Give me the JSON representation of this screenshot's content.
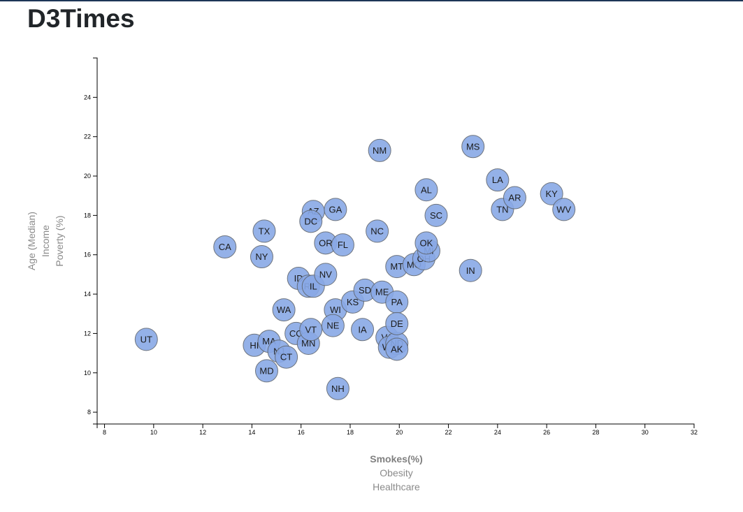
{
  "page": {
    "title": "D3Times",
    "accent": "#1d3557"
  },
  "chart_data": {
    "type": "scatter",
    "title": "",
    "x_labels": [
      {
        "text": "Smokes(%)",
        "active": true
      },
      {
        "text": "Obesity",
        "active": false
      },
      {
        "text": "Healthcare",
        "active": false
      }
    ],
    "y_labels": [
      {
        "text": "Poverty (%)",
        "active": false
      },
      {
        "text": "Income",
        "active": false
      },
      {
        "text": "Age (Median)",
        "active": false
      }
    ],
    "xlim": [
      7.7,
      32
    ],
    "ylim": [
      7.4,
      26
    ],
    "x_ticks": [
      8,
      10,
      12,
      14,
      16,
      18,
      20,
      22,
      24,
      26,
      28,
      30,
      32
    ],
    "y_ticks": [
      8,
      10,
      12,
      14,
      16,
      18,
      20,
      22,
      24
    ],
    "grid": false,
    "marker_color": "#89a9e6",
    "points": [
      {
        "abbr": "UT",
        "x": 9.7,
        "y": 11.7
      },
      {
        "abbr": "CA",
        "x": 12.9,
        "y": 16.4
      },
      {
        "abbr": "HI",
        "x": 14.1,
        "y": 11.4
      },
      {
        "abbr": "MA",
        "x": 14.7,
        "y": 11.6
      },
      {
        "abbr": "MD",
        "x": 14.6,
        "y": 10.1
      },
      {
        "abbr": "TX",
        "x": 14.5,
        "y": 17.2
      },
      {
        "abbr": "NY",
        "x": 14.4,
        "y": 15.9
      },
      {
        "abbr": "NJ",
        "x": 15.1,
        "y": 11.1
      },
      {
        "abbr": "CT",
        "x": 15.4,
        "y": 10.8
      },
      {
        "abbr": "WA",
        "x": 15.3,
        "y": 13.2
      },
      {
        "abbr": "CO",
        "x": 15.8,
        "y": 12.0
      },
      {
        "abbr": "ID",
        "x": 15.9,
        "y": 14.8
      },
      {
        "abbr": "RI",
        "x": 16.3,
        "y": 14.4
      },
      {
        "abbr": "IL",
        "x": 16.5,
        "y": 14.4
      },
      {
        "abbr": "MN",
        "x": 16.3,
        "y": 11.5
      },
      {
        "abbr": "VT",
        "x": 16.4,
        "y": 12.2
      },
      {
        "abbr": "AZ",
        "x": 16.5,
        "y": 18.2
      },
      {
        "abbr": "DC",
        "x": 16.4,
        "y": 17.7
      },
      {
        "abbr": "NV",
        "x": 17.0,
        "y": 15.0
      },
      {
        "abbr": "OR",
        "x": 17.0,
        "y": 16.6
      },
      {
        "abbr": "GA",
        "x": 17.4,
        "y": 18.3
      },
      {
        "abbr": "WI",
        "x": 17.4,
        "y": 13.2
      },
      {
        "abbr": "NE",
        "x": 17.3,
        "y": 12.4
      },
      {
        "abbr": "FL",
        "x": 17.7,
        "y": 16.5
      },
      {
        "abbr": "NH",
        "x": 17.5,
        "y": 9.2
      },
      {
        "abbr": "KS",
        "x": 18.1,
        "y": 13.6
      },
      {
        "abbr": "SD",
        "x": 18.6,
        "y": 14.2
      },
      {
        "abbr": "IA",
        "x": 18.5,
        "y": 12.2
      },
      {
        "abbr": "NC",
        "x": 19.1,
        "y": 17.2
      },
      {
        "abbr": "NM",
        "x": 19.2,
        "y": 21.3
      },
      {
        "abbr": "ME",
        "x": 19.3,
        "y": 14.1
      },
      {
        "abbr": "VA",
        "x": 19.5,
        "y": 11.8
      },
      {
        "abbr": "WY",
        "x": 19.6,
        "y": 11.3
      },
      {
        "abbr": "ND",
        "x": 19.9,
        "y": 11.5
      },
      {
        "abbr": "AK",
        "x": 19.9,
        "y": 11.2
      },
      {
        "abbr": "PA",
        "x": 19.9,
        "y": 13.6
      },
      {
        "abbr": "DE",
        "x": 19.9,
        "y": 12.5
      },
      {
        "abbr": "MT",
        "x": 19.9,
        "y": 15.4
      },
      {
        "abbr": "MO",
        "x": 20.6,
        "y": 15.5
      },
      {
        "abbr": "OH",
        "x": 21.0,
        "y": 15.8
      },
      {
        "abbr": "MI",
        "x": 21.2,
        "y": 16.2
      },
      {
        "abbr": "OK",
        "x": 21.1,
        "y": 16.6
      },
      {
        "abbr": "AL",
        "x": 21.1,
        "y": 19.3
      },
      {
        "abbr": "SC",
        "x": 21.5,
        "y": 18.0
      },
      {
        "abbr": "IN",
        "x": 22.9,
        "y": 15.2
      },
      {
        "abbr": "MS",
        "x": 23.0,
        "y": 21.5
      },
      {
        "abbr": "LA",
        "x": 24.0,
        "y": 19.8
      },
      {
        "abbr": "TN",
        "x": 24.2,
        "y": 18.3
      },
      {
        "abbr": "AR",
        "x": 24.7,
        "y": 18.9
      },
      {
        "abbr": "KY",
        "x": 26.2,
        "y": 19.1
      },
      {
        "abbr": "WV",
        "x": 26.7,
        "y": 18.3
      }
    ]
  }
}
